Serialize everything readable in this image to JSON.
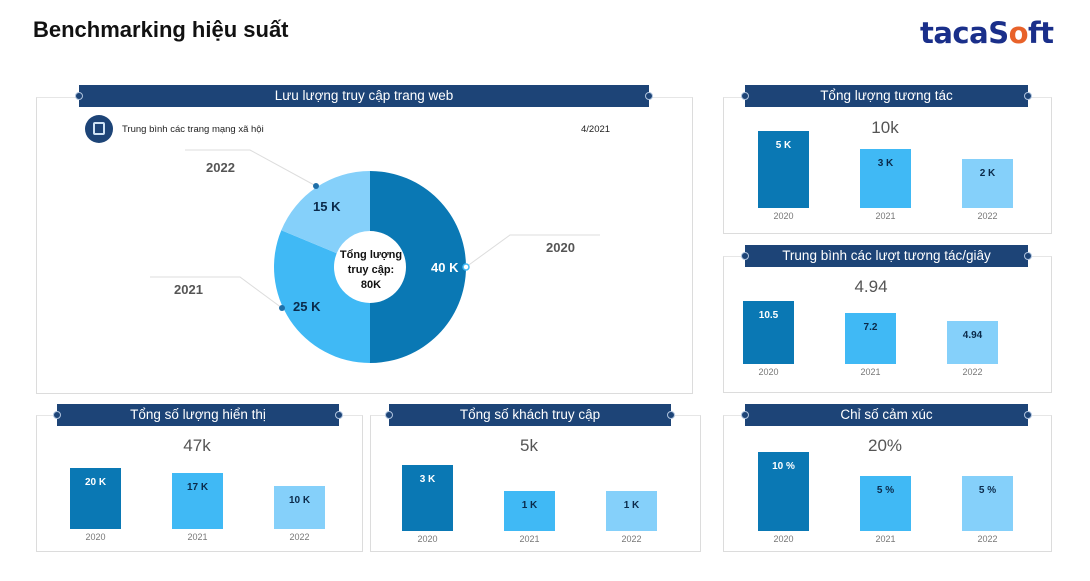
{
  "page_title": "Benchmarking hiệu suất",
  "logo": "tacaSoft",
  "colors": {
    "header": "#1d4477",
    "y2020": "#0a78b4",
    "y2021": "#40b9f5",
    "y2022": "#85d0fa"
  },
  "chart_data": [
    {
      "type": "pie",
      "id": "traffic",
      "title": "Lưu lượng truy cập trang web",
      "subtitle": "Trung bình các trang mạng xã hội",
      "date": "4/2021",
      "center_label": [
        "Tổng lượng",
        "truy cập:",
        "80K"
      ],
      "categories": [
        "2020",
        "2021",
        "2022"
      ],
      "values": [
        40,
        25,
        15
      ],
      "value_labels": [
        "40 K",
        "25 K",
        "15 K"
      ],
      "unit": "K",
      "icon": "social-media-icon"
    },
    {
      "type": "bar",
      "id": "interactions",
      "title": "Tổng lượng tương tác",
      "total": "10k",
      "categories": [
        "2020",
        "2021",
        "2022"
      ],
      "values": [
        5,
        3,
        2
      ],
      "value_labels": [
        "5 K",
        "3 K",
        "2 K"
      ]
    },
    {
      "type": "bar",
      "id": "avg_interactions",
      "title": "Trung bình các lượt tương tác/giây",
      "total": "4.94",
      "categories": [
        "2020",
        "2021",
        "2022"
      ],
      "values": [
        10.5,
        7.2,
        4.94
      ],
      "value_labels": [
        "10.5",
        "7.2",
        "4.94"
      ]
    },
    {
      "type": "bar",
      "id": "emotion",
      "title": "Chỉ số cảm xúc",
      "total": "20%",
      "categories": [
        "2020",
        "2021",
        "2022"
      ],
      "values": [
        10,
        5,
        5
      ],
      "value_labels": [
        "10 %",
        "5 %",
        "5 %"
      ]
    },
    {
      "type": "bar",
      "id": "impressions",
      "title": "Tổng số lượng hiển thị",
      "total": "47k",
      "categories": [
        "2020",
        "2021",
        "2022"
      ],
      "values": [
        20,
        17,
        10
      ],
      "value_labels": [
        "20 K",
        "17 K",
        "10 K"
      ]
    },
    {
      "type": "bar",
      "id": "visitors",
      "title": "Tổng số khách truy cập",
      "total": "5k",
      "categories": [
        "2020",
        "2021",
        "2022"
      ],
      "values": [
        3,
        1,
        1
      ],
      "value_labels": [
        "3 K",
        "1 K",
        "1 K"
      ]
    }
  ]
}
